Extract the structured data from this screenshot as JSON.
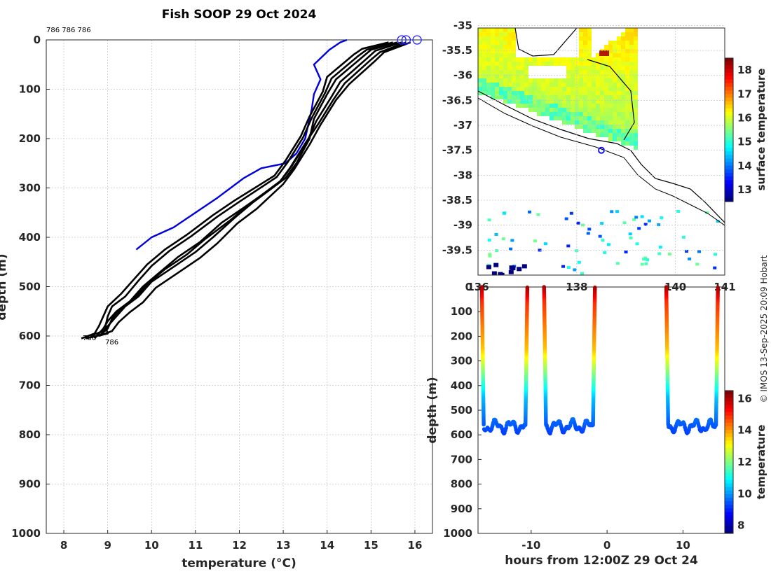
{
  "figure": {
    "title": "Fish SOOP 29 Oct 2024",
    "credit": "© IMOS 13-Sep-2025 20:09 Hobart"
  },
  "chart_data": [
    {
      "type": "line",
      "name": "profiles",
      "xlabel": "temperature (°C)",
      "ylabel": "depth (m)",
      "xlim": [
        7.6,
        16.4
      ],
      "ylim": [
        1000,
        0
      ],
      "xticks": [
        8,
        9,
        10,
        11,
        12,
        13,
        14,
        15,
        16
      ],
      "yticks": [
        0,
        100,
        200,
        300,
        400,
        500,
        600,
        700,
        800,
        900,
        1000
      ],
      "grid": true,
      "top_label": "786 786 786",
      "bottom_label": "786 786",
      "series": [
        {
          "name": "climatology",
          "color": "#0000dd",
          "points": [
            [
              14.45,
              0
            ],
            [
              14.3,
              5
            ],
            [
              14.05,
              20
            ],
            [
              13.7,
              50
            ],
            [
              13.85,
              80
            ],
            [
              13.7,
              110
            ],
            [
              13.65,
              140
            ],
            [
              13.5,
              200
            ],
            [
              13.3,
              230
            ],
            [
              13.05,
              250
            ],
            [
              12.5,
              260
            ],
            [
              12.1,
              280
            ],
            [
              11.8,
              300
            ],
            [
              11.5,
              320
            ],
            [
              11.0,
              350
            ],
            [
              10.5,
              380
            ],
            [
              10.0,
              400
            ],
            [
              9.65,
              425
            ]
          ]
        },
        {
          "name": "profile-1",
          "color": "#000000",
          "points": [
            [
              15.6,
              5
            ],
            [
              15.0,
              20
            ],
            [
              14.8,
              35
            ],
            [
              14.2,
              80
            ],
            [
              14.0,
              110
            ],
            [
              13.7,
              160
            ],
            [
              13.6,
              200
            ],
            [
              13.3,
              250
            ],
            [
              13.05,
              280
            ],
            [
              12.3,
              330
            ],
            [
              11.9,
              360
            ],
            [
              11.4,
              400
            ],
            [
              11.0,
              430
            ],
            [
              10.5,
              460
            ],
            [
              10.0,
              490
            ],
            [
              9.7,
              520
            ],
            [
              9.4,
              540
            ],
            [
              9.2,
              560
            ],
            [
              9.0,
              580
            ],
            [
              8.9,
              590
            ],
            [
              8.6,
              600
            ]
          ]
        },
        {
          "name": "profile-2",
          "color": "#000000",
          "points": [
            [
              15.7,
              5
            ],
            [
              15.1,
              22
            ],
            [
              14.9,
              38
            ],
            [
              14.3,
              85
            ],
            [
              14.1,
              115
            ],
            [
              13.75,
              165
            ],
            [
              13.55,
              205
            ],
            [
              13.2,
              255
            ],
            [
              12.95,
              285
            ],
            [
              12.2,
              335
            ],
            [
              11.8,
              365
            ],
            [
              11.2,
              405
            ],
            [
              10.8,
              435
            ],
            [
              10.3,
              465
            ],
            [
              9.9,
              495
            ],
            [
              9.6,
              525
            ],
            [
              9.3,
              545
            ],
            [
              9.1,
              565
            ],
            [
              9.0,
              585
            ],
            [
              8.8,
              600
            ]
          ]
        },
        {
          "name": "profile-3",
          "color": "#000000",
          "points": [
            [
              15.8,
              5
            ],
            [
              15.2,
              25
            ],
            [
              15.0,
              40
            ],
            [
              14.4,
              88
            ],
            [
              14.15,
              120
            ],
            [
              13.8,
              170
            ],
            [
              13.5,
              210
            ],
            [
              13.15,
              260
            ],
            [
              12.9,
              290
            ],
            [
              12.1,
              340
            ],
            [
              11.6,
              370
            ],
            [
              11.1,
              410
            ],
            [
              10.6,
              440
            ],
            [
              10.2,
              470
            ],
            [
              9.8,
              500
            ],
            [
              9.5,
              530
            ],
            [
              9.2,
              550
            ],
            [
              9.0,
              570
            ],
            [
              8.9,
              585
            ],
            [
              8.7,
              605
            ]
          ]
        },
        {
          "name": "profile-4",
          "color": "#000000",
          "points": [
            [
              15.5,
              5
            ],
            [
              14.9,
              20
            ],
            [
              14.7,
              33
            ],
            [
              14.1,
              78
            ],
            [
              13.95,
              108
            ],
            [
              13.65,
              158
            ],
            [
              13.45,
              198
            ],
            [
              13.1,
              248
            ],
            [
              12.85,
              278
            ],
            [
              12.0,
              328
            ],
            [
              11.5,
              358
            ],
            [
              10.9,
              398
            ],
            [
              10.4,
              428
            ],
            [
              10.0,
              458
            ],
            [
              9.7,
              488
            ],
            [
              9.4,
              520
            ],
            [
              9.1,
              540
            ],
            [
              9.0,
              560
            ],
            [
              8.95,
              580
            ],
            [
              9.0,
              595
            ],
            [
              8.5,
              605
            ]
          ]
        },
        {
          "name": "profile-5",
          "color": "#000000",
          "points": [
            [
              15.9,
              5
            ],
            [
              15.3,
              25
            ],
            [
              15.1,
              42
            ],
            [
              14.5,
              90
            ],
            [
              14.2,
              122
            ],
            [
              13.85,
              172
            ],
            [
              13.6,
              212
            ],
            [
              13.25,
              262
            ],
            [
              13.0,
              292
            ],
            [
              12.4,
              342
            ],
            [
              11.95,
              372
            ],
            [
              11.5,
              412
            ],
            [
              11.1,
              442
            ],
            [
              10.6,
              472
            ],
            [
              10.1,
              502
            ],
            [
              9.8,
              532
            ],
            [
              9.5,
              552
            ],
            [
              9.25,
              572
            ],
            [
              9.1,
              590
            ],
            [
              8.8,
              600
            ]
          ]
        },
        {
          "name": "profile-6",
          "color": "#000000",
          "points": [
            [
              15.4,
              5
            ],
            [
              14.8,
              18
            ],
            [
              14.6,
              30
            ],
            [
              14.0,
              75
            ],
            [
              13.9,
              105
            ],
            [
              13.6,
              155
            ],
            [
              13.4,
              195
            ],
            [
              13.05,
              245
            ],
            [
              12.8,
              275
            ],
            [
              11.9,
              325
            ],
            [
              11.4,
              355
            ],
            [
              10.8,
              395
            ],
            [
              10.3,
              425
            ],
            [
              9.9,
              455
            ],
            [
              9.6,
              485
            ],
            [
              9.3,
              515
            ],
            [
              9.0,
              540
            ],
            [
              8.9,
              560
            ],
            [
              8.8,
              580
            ],
            [
              8.7,
              595
            ],
            [
              8.4,
              605
            ]
          ]
        }
      ],
      "markers": [
        [
          15.7,
          0
        ],
        [
          15.8,
          0
        ],
        [
          16.05,
          0
        ]
      ]
    },
    {
      "type": "heatmap",
      "name": "surface-temperature-map",
      "xlim": [
        136,
        141
      ],
      "ylim": [
        -40,
        -35
      ],
      "xticks": [
        136,
        138,
        140,
        141
      ],
      "xtick_labels": [
        "136",
        "138",
        "140",
        "141"
      ],
      "yticks": [
        -35,
        -35.5,
        -36,
        -36.5,
        -37,
        -37.5,
        -38,
        -38.5,
        -39,
        -39.5
      ],
      "colorbar_label": "surface temperature",
      "colorbar_ticks": [
        13,
        14,
        15,
        16,
        17,
        18
      ],
      "colorbar_range": [
        12.5,
        18.5
      ],
      "track_marker": [
        138.5,
        -37.5
      ]
    },
    {
      "type": "scatter",
      "name": "depth-time",
      "xlabel": "hours from 12:00Z 29 Oct 24",
      "ylabel": "depth (m)",
      "xlim": [
        -17,
        15.5
      ],
      "ylim": [
        1000,
        0
      ],
      "xticks": [
        -10,
        0,
        10
      ],
      "yticks": [
        0,
        100,
        200,
        300,
        400,
        500,
        600,
        700,
        800,
        900,
        1000
      ],
      "colorbar_label": "temperature",
      "colorbar_ticks": [
        8,
        10,
        12,
        14,
        16
      ],
      "colorbar_range": [
        7.5,
        16.5
      ],
      "casts": [
        {
          "down_start": -16.5,
          "bottom_end": -10.5
        },
        {
          "down_start": -8.3,
          "bottom_end": -1.6
        },
        {
          "down_start": 7.8,
          "bottom_end": 14.6
        }
      ]
    }
  ]
}
